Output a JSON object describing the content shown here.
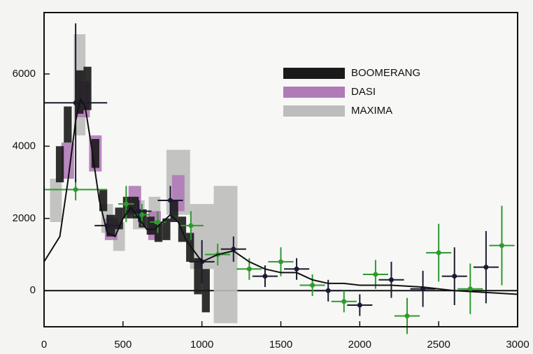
{
  "chart_data": {
    "type": "scatter",
    "xlim": [
      0,
      3000
    ],
    "ylim": [
      -1000,
      7700
    ],
    "xticks": [
      0,
      500,
      1000,
      1500,
      2000,
      2500,
      3000
    ],
    "yticks": [
      0,
      2000,
      4000,
      6000
    ],
    "series": [
      {
        "name": "MAXIMA",
        "color": "#bdbdbd",
        "style": "box",
        "x": [
          75,
          225,
          400,
          475,
          600,
          700,
          850,
          1000,
          1150
        ],
        "values": [
          2500,
          5700,
          2000,
          1500,
          2100,
          2200,
          3000,
          1500,
          1000
        ],
        "xerr": [
          37,
          37,
          37,
          37,
          37,
          37,
          75,
          75,
          75
        ],
        "yerr": [
          600,
          1400,
          400,
          400,
          400,
          400,
          900,
          900,
          1900
        ]
      },
      {
        "name": "DASI",
        "color": "#b07ab8",
        "style": "box",
        "x": [
          150,
          250,
          325,
          425,
          575,
          700,
          850
        ],
        "values": [
          3600,
          5300,
          3800,
          1700,
          2500,
          1800,
          2700
        ],
        "xerr": [
          40,
          40,
          40,
          40,
          40,
          40,
          40
        ],
        "yerr": [
          500,
          500,
          500,
          300,
          400,
          400,
          500
        ]
      },
      {
        "name": "BOOMERANG",
        "color": "#1a1a1a",
        "style": "box",
        "x": [
          100,
          150,
          225,
          275,
          325,
          375,
          425,
          475,
          525,
          575,
          625,
          675,
          725,
          775,
          825,
          875,
          925,
          975,
          1025
        ],
        "values": [
          3500,
          4600,
          5500,
          5600,
          3800,
          2500,
          1800,
          2000,
          2300,
          2300,
          2000,
          1800,
          1600,
          1700,
          2200,
          1700,
          1200,
          400,
          0
        ],
        "xerr": [
          25,
          25,
          25,
          25,
          25,
          25,
          25,
          25,
          25,
          25,
          25,
          25,
          25,
          25,
          25,
          25,
          25,
          25,
          25
        ],
        "yerr": [
          500,
          500,
          600,
          600,
          400,
          300,
          300,
          300,
          300,
          300,
          250,
          250,
          250,
          300,
          300,
          350,
          400,
          500,
          600
        ]
      },
      {
        "color": "#2e9a2e",
        "style": "errorbar",
        "x": [
          200,
          520,
          620,
          720,
          930,
          1100,
          1300,
          1500,
          1700,
          1900,
          2100,
          2300,
          2500,
          2700,
          2900
        ],
        "values": [
          2800,
          2400,
          2100,
          1900,
          1800,
          1000,
          600,
          800,
          150,
          -300,
          450,
          -700,
          1050,
          50,
          1250
        ],
        "xerr": [
          200,
          50,
          50,
          50,
          80,
          80,
          80,
          80,
          80,
          80,
          80,
          80,
          80,
          80,
          80
        ],
        "yerr": [
          300,
          500,
          300,
          300,
          400,
          300,
          300,
          400,
          300,
          300,
          400,
          500,
          800,
          700,
          1100
        ]
      },
      {
        "color": "#1a1a33",
        "style": "errorbar",
        "x": [
          200,
          400,
          600,
          800,
          1000,
          1200,
          1400,
          1600,
          1800,
          2000,
          2200,
          2400,
          2600,
          2800
        ],
        "values": [
          5200,
          1800,
          2200,
          2500,
          800,
          1150,
          400,
          600,
          0,
          -400,
          300,
          50,
          400,
          650
        ],
        "xerr": [
          200,
          80,
          80,
          80,
          80,
          80,
          80,
          80,
          80,
          80,
          80,
          80,
          80,
          80
        ],
        "yerr": [
          2200,
          300,
          300,
          400,
          600,
          350,
          300,
          300,
          300,
          300,
          500,
          500,
          800,
          1000
        ]
      },
      {
        "color": "#111111",
        "style": "line",
        "x": [
          0,
          100,
          150,
          200,
          230,
          260,
          300,
          350,
          400,
          450,
          500,
          550,
          600,
          650,
          700,
          750,
          800,
          850,
          900,
          1000,
          1100,
          1200,
          1300,
          1400,
          1500,
          1600,
          1700,
          1800,
          1900,
          2000,
          2200,
          2400,
          2600,
          3000
        ],
        "values": [
          800,
          1500,
          3000,
          4700,
          5300,
          5100,
          4000,
          2500,
          1600,
          1500,
          2000,
          2300,
          2000,
          1700,
          1700,
          1900,
          2100,
          1900,
          1400,
          800,
          1000,
          1100,
          800,
          600,
          500,
          500,
          300,
          200,
          200,
          150,
          150,
          100,
          0,
          -100
        ]
      }
    ]
  }
}
